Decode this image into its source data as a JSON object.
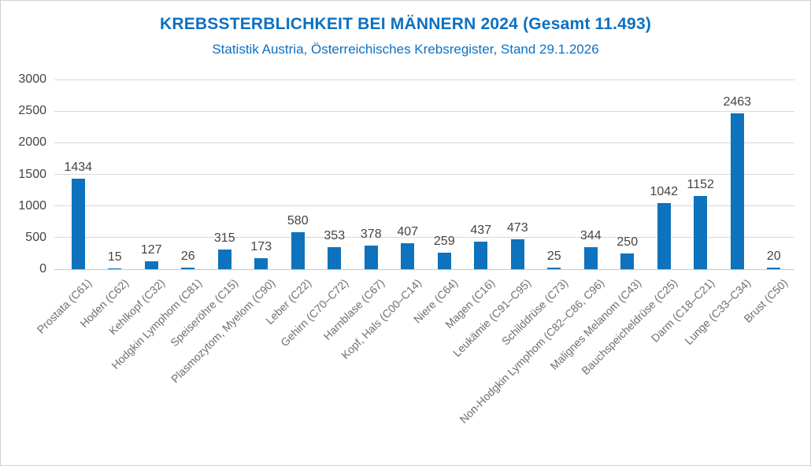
{
  "header": {
    "title": "KREBSSTERBLICHKEIT BEI MÄNNERN 2024 (Gesamt 11.493)",
    "subtitle": "Statistik Austria, Österreichisches Krebsregister, Stand 29.1.2026"
  },
  "colors": {
    "bar": "#0e72bd",
    "title_text": "#0d70c2",
    "subtitle_text": "#0d70c2",
    "gridline": "#d9d9d9",
    "axis_line": "#c9c9c9",
    "tick_text": "#444444",
    "value_label_text": "#444444",
    "category_text": "#6f6f6f",
    "background": "#ffffff"
  },
  "chart_data": {
    "type": "bar",
    "title": "KREBSSTERBLICHKEIT BEI MÄNNERN 2024 (Gesamt 11.493)",
    "subtitle": "Statistik Austria, Österreichisches Krebsregister, Stand 29.1.2026",
    "categories": [
      "Prostata (C61)",
      "Hoden (C62)",
      "Kehlkopf (C32)",
      "Hodgkin Lymphom (C81)",
      "Speiseröhre (C15)",
      "Plasmozytom, Myelom (C90)",
      "Leber (C22)",
      "Gehirn (C70–C72)",
      "Harnblase (C67)",
      "Kopf, Hals (C00–C14)",
      "Niere (C64)",
      "Magen (C16)",
      "Leukämie (C91–C95)",
      "Schilddrüse (C73)",
      "Non-Hodgkin Lymphom (C82–C86, C96)",
      "Malignes Melanom (C43)",
      "Bauchspeicheldrüse (C25)",
      "Darm (C18–C21)",
      "Lunge (C33–C34)",
      "Brust (C50)"
    ],
    "values": [
      1434,
      15,
      127,
      26,
      315,
      173,
      580,
      353,
      378,
      407,
      259,
      437,
      473,
      25,
      344,
      250,
      1042,
      1152,
      2463,
      20
    ],
    "total": "11.493",
    "xlabel": "",
    "ylabel": "",
    "ylim": [
      0,
      3000
    ],
    "yticks": [
      0,
      500,
      1000,
      1500,
      2000,
      2500,
      3000
    ],
    "grid": true,
    "legend": false,
    "data_labels": true,
    "category_rotation_deg": 45
  }
}
